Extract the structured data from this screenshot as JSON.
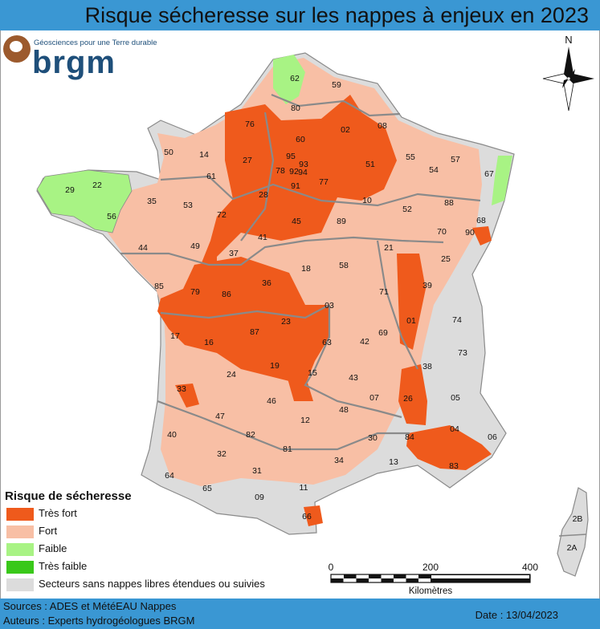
{
  "title": "Risque sécheresse sur les nappes à enjeux en 2023",
  "logo": {
    "tagline": "Géosciences pour une Terre durable",
    "name": "brgm"
  },
  "compass": {
    "north_label": "N"
  },
  "colors": {
    "very_high": "#ef5a1c",
    "high": "#f8bfa5",
    "low": "#a8f384",
    "very_low": "#39c819",
    "none": "#dcdcdc",
    "border": "#8a8a8a",
    "header": "#3a97d3"
  },
  "departments": [
    {
      "code": "62",
      "risk": "low"
    },
    {
      "code": "59",
      "risk": "high"
    },
    {
      "code": "80",
      "risk": "high"
    },
    {
      "code": "76",
      "risk": "very_high"
    },
    {
      "code": "02",
      "risk": "very_high"
    },
    {
      "code": "08",
      "risk": "high"
    },
    {
      "code": "60",
      "risk": "very_high"
    },
    {
      "code": "95",
      "risk": "very_high"
    },
    {
      "code": "93",
      "risk": "very_high"
    },
    {
      "code": "92",
      "risk": "very_high"
    },
    {
      "code": "94",
      "risk": "very_high"
    },
    {
      "code": "78",
      "risk": "very_high"
    },
    {
      "code": "91",
      "risk": "very_high"
    },
    {
      "code": "77",
      "risk": "very_high"
    },
    {
      "code": "51",
      "risk": "very_high"
    },
    {
      "code": "55",
      "risk": "high"
    },
    {
      "code": "57",
      "risk": "high"
    },
    {
      "code": "54",
      "risk": "high"
    },
    {
      "code": "67",
      "risk": "low"
    },
    {
      "code": "50",
      "risk": "high"
    },
    {
      "code": "14",
      "risk": "high"
    },
    {
      "code": "27",
      "risk": "very_high"
    },
    {
      "code": "61",
      "risk": "high"
    },
    {
      "code": "28",
      "risk": "very_high"
    },
    {
      "code": "10",
      "risk": "very_high"
    },
    {
      "code": "52",
      "risk": "high"
    },
    {
      "code": "88",
      "risk": "high"
    },
    {
      "code": "68",
      "risk": "high"
    },
    {
      "code": "29",
      "risk": "low"
    },
    {
      "code": "22",
      "risk": "low"
    },
    {
      "code": "56",
      "risk": "low"
    },
    {
      "code": "35",
      "risk": "high"
    },
    {
      "code": "53",
      "risk": "high"
    },
    {
      "code": "72",
      "risk": "very_high"
    },
    {
      "code": "45",
      "risk": "very_high"
    },
    {
      "code": "89",
      "risk": "high"
    },
    {
      "code": "70",
      "risk": "high"
    },
    {
      "code": "90",
      "risk": "very_high"
    },
    {
      "code": "44",
      "risk": "high"
    },
    {
      "code": "49",
      "risk": "high"
    },
    {
      "code": "41",
      "risk": "very_high"
    },
    {
      "code": "37",
      "risk": "very_high"
    },
    {
      "code": "18",
      "risk": "high"
    },
    {
      "code": "58",
      "risk": "high"
    },
    {
      "code": "21",
      "risk": "high"
    },
    {
      "code": "25",
      "risk": "high"
    },
    {
      "code": "85",
      "risk": "high"
    },
    {
      "code": "36",
      "risk": "very_high"
    },
    {
      "code": "71",
      "risk": "high"
    },
    {
      "code": "39",
      "risk": "high"
    },
    {
      "code": "79",
      "risk": "very_high"
    },
    {
      "code": "86",
      "risk": "very_high"
    },
    {
      "code": "03",
      "risk": "very_high"
    },
    {
      "code": "01",
      "risk": "very_high"
    },
    {
      "code": "74",
      "risk": "none"
    },
    {
      "code": "17",
      "risk": "high"
    },
    {
      "code": "87",
      "risk": "very_high"
    },
    {
      "code": "23",
      "risk": "very_high"
    },
    {
      "code": "69",
      "risk": "high"
    },
    {
      "code": "73",
      "risk": "none"
    },
    {
      "code": "16",
      "risk": "very_high"
    },
    {
      "code": "63",
      "risk": "high"
    },
    {
      "code": "42",
      "risk": "high"
    },
    {
      "code": "38",
      "risk": "high"
    },
    {
      "code": "24",
      "risk": "high"
    },
    {
      "code": "19",
      "risk": "very_high"
    },
    {
      "code": "15",
      "risk": "high"
    },
    {
      "code": "43",
      "risk": "none"
    },
    {
      "code": "33",
      "risk": "high"
    },
    {
      "code": "46",
      "risk": "high"
    },
    {
      "code": "07",
      "risk": "high"
    },
    {
      "code": "26",
      "risk": "very_high"
    },
    {
      "code": "05",
      "risk": "none"
    },
    {
      "code": "47",
      "risk": "high"
    },
    {
      "code": "12",
      "risk": "high"
    },
    {
      "code": "48",
      "risk": "high"
    },
    {
      "code": "40",
      "risk": "high"
    },
    {
      "code": "82",
      "risk": "high"
    },
    {
      "code": "04",
      "risk": "none"
    },
    {
      "code": "06",
      "risk": "none"
    },
    {
      "code": "30",
      "risk": "high"
    },
    {
      "code": "84",
      "risk": "very_high"
    },
    {
      "code": "32",
      "risk": "none"
    },
    {
      "code": "81",
      "risk": "high"
    },
    {
      "code": "34",
      "risk": "high"
    },
    {
      "code": "13",
      "risk": "high"
    },
    {
      "code": "83",
      "risk": "very_high"
    },
    {
      "code": "64",
      "risk": "none"
    },
    {
      "code": "31",
      "risk": "high"
    },
    {
      "code": "65",
      "risk": "none"
    },
    {
      "code": "11",
      "risk": "none"
    },
    {
      "code": "09",
      "risk": "none"
    },
    {
      "code": "66",
      "risk": "none"
    },
    {
      "code": "2B",
      "risk": "none"
    },
    {
      "code": "2A",
      "risk": "none"
    }
  ],
  "legend": {
    "title": "Risque de sécheresse",
    "items": [
      {
        "label": "Très fort",
        "color": "#ef5a1c"
      },
      {
        "label": "Fort",
        "color": "#f8bfa5"
      },
      {
        "label": "Faible",
        "color": "#a8f384"
      },
      {
        "label": "Très faible",
        "color": "#39c819"
      },
      {
        "label": "Secteurs sans nappes libres étendues ou suivies",
        "color": "#dcdcdc"
      }
    ]
  },
  "scale_bar": {
    "ticks": [
      "0",
      "200",
      "400"
    ],
    "unit": "Kilomètres"
  },
  "footer": {
    "sources": "Sources : ADES et MétéEAU Nappes",
    "authors": "Auteurs : Experts hydrogéologues BRGM",
    "date": "Date : 13/04/2023"
  }
}
